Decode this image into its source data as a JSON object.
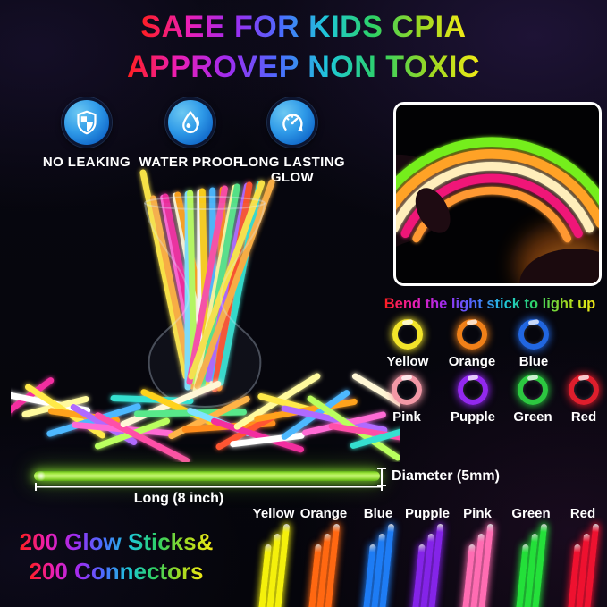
{
  "title": {
    "line1": "SAEE FOR KIDS CPIA",
    "line2": "APPROVEP NON TOXIC"
  },
  "features": [
    {
      "icon": "shield-check-icon",
      "label": "NO LEAKING"
    },
    {
      "icon": "water-drop-icon",
      "label": "WATER PROOF"
    },
    {
      "icon": "long-lasting-timer-icon",
      "label": "LONG LASTING GLOW"
    }
  ],
  "inset": {
    "caption": "Bend the light stick to light up"
  },
  "color_rings": {
    "row1": [
      {
        "label": "Yellow",
        "hex": "#f2e42a"
      },
      {
        "label": "Orange",
        "hex": "#f08018"
      },
      {
        "label": "Blue",
        "hex": "#2166e0"
      }
    ],
    "row2": [
      {
        "label": "Pink",
        "hex": "#f298a6"
      },
      {
        "label": "Pupple",
        "hex": "#9228ee"
      },
      {
        "label": "Green",
        "hex": "#2cc840"
      },
      {
        "label": "Red",
        "hex": "#de1e2c"
      }
    ]
  },
  "measurements": {
    "length": "Long (8 inch)",
    "diameter": "Diameter (5mm)",
    "stick_color": "#8ede34"
  },
  "counts": {
    "line1": "200 Glow Sticks&",
    "line2": "200 Connectors"
  },
  "bottom_sticks": [
    {
      "label": "Yellow",
      "hex": "#f4f00c"
    },
    {
      "label": "Orange",
      "hex": "#ff6812"
    },
    {
      "label": "Blue",
      "hex": "#1e7cf4"
    },
    {
      "label": "Pupple",
      "hex": "#8424e8"
    },
    {
      "label": "Pink",
      "hex": "#ff6cb2"
    },
    {
      "label": "Green",
      "hex": "#24e03a"
    },
    {
      "label": "Red",
      "hex": "#ee1230"
    }
  ],
  "colors": {
    "background": "#06060e",
    "icon_circle": "#2b9ae8",
    "text": "#ffffff",
    "rainbow": [
      "#ff1e1e",
      "#ec1eb4",
      "#a02cf0",
      "#4b6bff",
      "#1ec8d8",
      "#2ed164",
      "#9cd822",
      "#f2ea16"
    ]
  },
  "glow_palette": [
    "#ffe94a",
    "#ffb347",
    "#ff6ad5",
    "#f32fa0",
    "#fff7d6",
    "#ffa21f",
    "#7fe3ff",
    "#baff5e",
    "#ffffff",
    "#ffd21f",
    "#4db8ff",
    "#ff8c1a",
    "#ff4fa8",
    "#fffa9e",
    "#58e88a",
    "#b06aff",
    "#ff5533",
    "#35e0d0"
  ]
}
